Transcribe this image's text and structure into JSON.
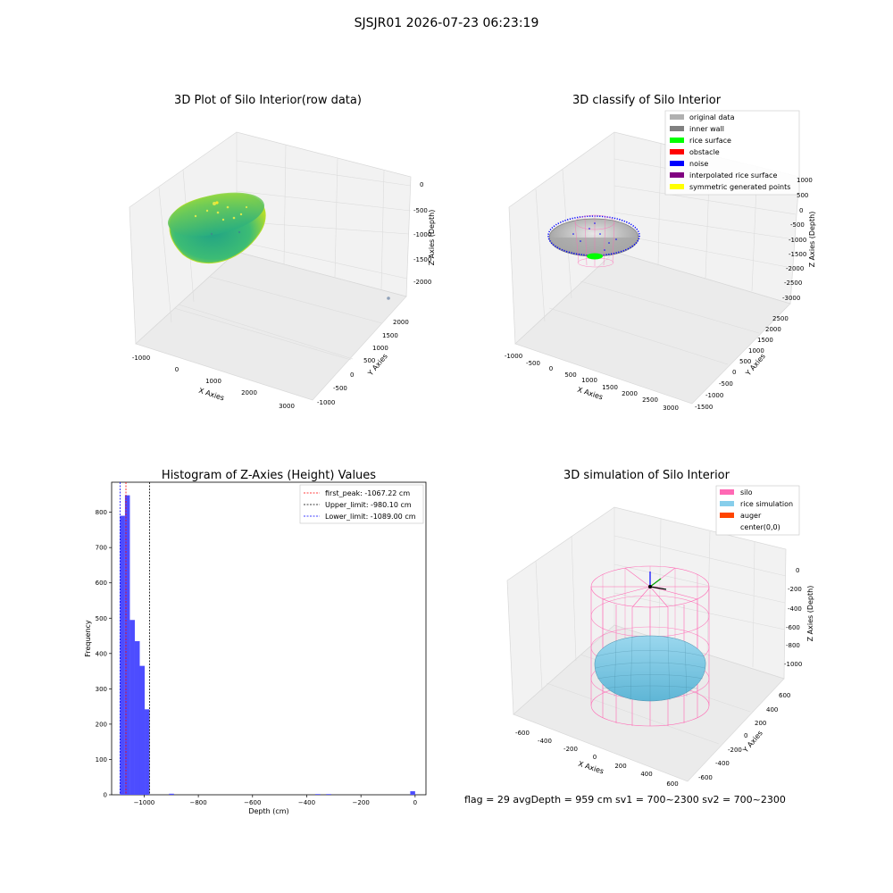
{
  "suptitle": "SJSJR01 2026-07-23 06:23:19",
  "colors": {
    "surface_dark": "#1f9e89",
    "surface_light": "#b5de2b",
    "original": "#b0b0b0",
    "inner_wall": "#808080",
    "rice_surface": "#00ff00",
    "obstacle": "#ff0000",
    "noise": "#0000ff",
    "interpolated": "#800080",
    "symmetric": "#ffff00",
    "silo": "#ff69b4",
    "rice_sim": "#87ceeb",
    "auger": "#ff4500",
    "hist_bar": "#4d4dff",
    "first_peak": "#ff0000",
    "upper_limit": "#000000",
    "lower_limit": "#0000ff"
  },
  "chart_data": [
    {
      "type": "scatter",
      "title": "3D Plot of Silo Interior(row data)",
      "xlabel": "X Axies",
      "ylabel": "Y Axies",
      "zlabel": "Z Axies (Depth)",
      "x_ticks": [
        "-1000",
        "0",
        "1000",
        "2000",
        "3000"
      ],
      "y_ticks": [
        "-1000",
        "-500",
        "0",
        "500",
        "1000",
        "1500",
        "2000"
      ],
      "z_ticks": [
        "0",
        "-500",
        "-1000",
        "-1500",
        "-2000"
      ],
      "grid": true
    },
    {
      "type": "scatter",
      "title": "3D classify of Silo Interior",
      "xlabel": "X Axies",
      "ylabel": "Y Axies",
      "zlabel": "Z Axies (Depth)",
      "x_ticks": [
        "-1000",
        "-500",
        "0",
        "500",
        "1000",
        "1500",
        "2000",
        "2500",
        "3000"
      ],
      "y_ticks": [
        "-1500",
        "-1000",
        "-500",
        "0",
        "500",
        "1000",
        "1500",
        "2000",
        "2500"
      ],
      "z_ticks": [
        "1000",
        "500",
        "0",
        "-500",
        "-1000",
        "-1500",
        "-2000",
        "-2500",
        "-3000"
      ],
      "legend": [
        "original data",
        "inner wall",
        "rice surface",
        "obstacle",
        "noise",
        "interpolated rice surface",
        "symmetric generated points"
      ],
      "legend_position": "top-right",
      "grid": true
    },
    {
      "type": "bar",
      "title": "Histogram of Z-Axies (Height) Values",
      "xlabel": "Depth (cm)",
      "ylabel": "Frequency",
      "xlim": [
        -1120,
        40
      ],
      "ylim": [
        0,
        885
      ],
      "x_ticks": [
        -1000,
        -800,
        -600,
        -400,
        -200,
        0
      ],
      "y_ticks": [
        0,
        100,
        200,
        300,
        400,
        500,
        600,
        700,
        800
      ],
      "bins": [
        {
          "x0": -1089,
          "x1": -1070.8,
          "count": 790
        },
        {
          "x0": -1070.8,
          "x1": -1052.6,
          "count": 848
        },
        {
          "x0": -1052.6,
          "x1": -1034.4,
          "count": 495
        },
        {
          "x0": -1034.4,
          "x1": -1016.2,
          "count": 435
        },
        {
          "x0": -1016.2,
          "x1": -998,
          "count": 365
        },
        {
          "x0": -998,
          "x1": -980.1,
          "count": 242
        },
        {
          "x0": -908,
          "x1": -890,
          "count": 3
        },
        {
          "x0": -368,
          "x1": -350,
          "count": 2
        },
        {
          "x0": -328,
          "x1": -310,
          "count": 2
        },
        {
          "x0": -18,
          "x1": 0,
          "count": 10
        }
      ],
      "vlines": [
        {
          "label": "first_peak: -1067.22 cm",
          "x": -1067.22,
          "color_key": "first_peak"
        },
        {
          "label": "Upper_limit: -980.10 cm",
          "x": -980.1,
          "color_key": "upper_limit"
        },
        {
          "label": "Lower_limit: -1089.00 cm",
          "x": -1089.0,
          "color_key": "lower_limit"
        }
      ],
      "legend_position": "top-right",
      "grid": false
    },
    {
      "type": "scatter",
      "title": "3D simulation of Silo Interior",
      "xlabel": "X Axies",
      "ylabel": "Y Axies",
      "zlabel": "Z Axies (Depth)",
      "x_ticks": [
        "-600",
        "-400",
        "-200",
        "0",
        "200",
        "400",
        "600"
      ],
      "y_ticks": [
        "-600",
        "-400",
        "-200",
        "0",
        "200",
        "400",
        "600"
      ],
      "z_ticks": [
        "0",
        "-200",
        "-400",
        "-600",
        "-800",
        "-1000"
      ],
      "legend": [
        "silo",
        "rice simulation",
        "auger",
        "center(0,0)"
      ],
      "legend_position": "top-right",
      "grid": true
    }
  ],
  "status": {
    "text": "flag = 29  avgDepth = 959 cm  sv1 = 700~2300  sv2 = 700~2300"
  }
}
